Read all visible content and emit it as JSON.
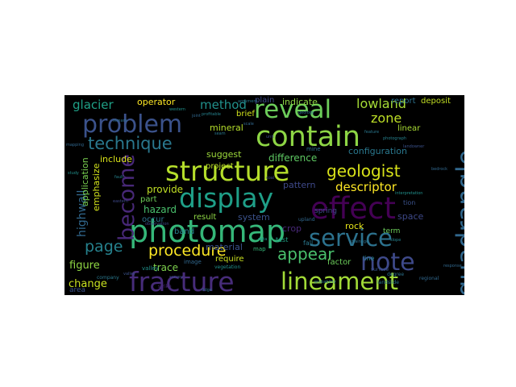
{
  "words": [
    {
      "text": "quadrangle",
      "color": "#31688e"
    },
    {
      "text": "structure",
      "color": "#b5de2b"
    },
    {
      "text": "photomap",
      "color": "#35b779"
    },
    {
      "text": "lineament",
      "color": "#a2da37"
    },
    {
      "text": "fracture",
      "color": "#472c7a"
    },
    {
      "text": "contain",
      "color": "#8ed645"
    },
    {
      "text": "display",
      "color": "#1f9f88"
    },
    {
      "text": "effect",
      "color": "#440154"
    },
    {
      "text": "problem",
      "color": "#3b528b"
    },
    {
      "text": "reveal",
      "color": "#6ccd5a"
    },
    {
      "text": "service",
      "color": "#2c728e"
    },
    {
      "text": "note",
      "color": "#3e4989"
    },
    {
      "text": "become",
      "color": "#482878"
    },
    {
      "text": "technique",
      "color": "#2a788e"
    },
    {
      "text": "geologist",
      "color": "#d8e219"
    },
    {
      "text": "procedure",
      "color": "#fde725"
    },
    {
      "text": "appear",
      "color": "#4ac16d"
    },
    {
      "text": "page",
      "color": "#26828e"
    },
    {
      "text": "glacier",
      "color": "#1fa187"
    },
    {
      "text": "method",
      "color": "#21918c"
    },
    {
      "text": "zone",
      "color": "#bddf26"
    },
    {
      "text": "lowland",
      "color": "#a5db36"
    },
    {
      "text": "descriptor",
      "color": "#fde725"
    },
    {
      "text": "highwall",
      "color": "#31688e"
    },
    {
      "text": "figure",
      "color": "#8fd744"
    },
    {
      "text": "change",
      "color": "#c8e020"
    },
    {
      "text": "configuration",
      "color": "#2a788e"
    },
    {
      "text": "difference",
      "color": "#5ec962"
    },
    {
      "text": "suggest",
      "color": "#9dd93b"
    },
    {
      "text": "application",
      "color": "#7ad151"
    },
    {
      "text": "emphasize",
      "color": "#d2e21b"
    },
    {
      "text": "provide",
      "color": "#c0df25"
    },
    {
      "text": "hazard",
      "color": "#4ac16d"
    },
    {
      "text": "trace",
      "color": "#7fd34e"
    },
    {
      "text": "operator",
      "color": "#fde725"
    },
    {
      "text": "indicate",
      "color": "#8fd744"
    },
    {
      "text": "mineral",
      "color": "#b5de2b"
    },
    {
      "text": "include",
      "color": "#d8e219"
    },
    {
      "text": "pattern",
      "color": "#3e4989"
    },
    {
      "text": "space",
      "color": "#3e4989"
    },
    {
      "text": "rock",
      "color": "#e5e419"
    },
    {
      "text": "report",
      "color": "#2c728e"
    },
    {
      "text": "linear",
      "color": "#a8db34"
    },
    {
      "text": "deposit",
      "color": "#c2df23"
    },
    {
      "text": "crop",
      "color": "#482878"
    },
    {
      "text": "project",
      "color": "#bade28"
    },
    {
      "text": "material",
      "color": "#3b528b"
    },
    {
      "text": "system",
      "color": "#3b528b"
    },
    {
      "text": "result",
      "color": "#8ed645"
    },
    {
      "text": "require",
      "color": "#cae11f"
    },
    {
      "text": "factor",
      "color": "#6ccd5a"
    },
    {
      "text": "occur",
      "color": "#2c728e"
    },
    {
      "text": "band",
      "color": "#26828e"
    },
    {
      "text": "part",
      "color": "#6ece58"
    },
    {
      "text": "brief",
      "color": "#d0e11c"
    },
    {
      "text": "plain",
      "color": "#3e4989"
    },
    {
      "text": "area",
      "color": "#3b528b"
    },
    {
      "text": "term",
      "color": "#6ccd5a"
    },
    {
      "text": "test",
      "color": "#1fa187"
    },
    {
      "text": "fall",
      "color": "#2a788e"
    },
    {
      "text": "map",
      "color": "#35b779"
    },
    {
      "text": "mine",
      "color": "#2c728e"
    },
    {
      "text": "line",
      "color": "#26828e"
    },
    {
      "text": "spring",
      "color": "#3e4989"
    },
    {
      "text": "valley",
      "color": "#21918c"
    },
    {
      "text": "image",
      "color": "#31688e"
    },
    {
      "text": "company",
      "color": "#2a788e"
    },
    {
      "text": "upland",
      "color": "#31688e"
    },
    {
      "text": "tion",
      "color": "#3b528b"
    },
    {
      "text": "degree",
      "color": "#2c728e"
    },
    {
      "text": "vegetation",
      "color": "#21918c"
    },
    {
      "text": "regional",
      "color": "#31688e"
    },
    {
      "text": "landslide",
      "color": "#2a788e"
    },
    {
      "text": "strike",
      "color": "#482878"
    },
    {
      "text": "surface",
      "color": "#3b528b"
    },
    {
      "text": "photograph",
      "color": "#26828e"
    },
    {
      "text": "geology",
      "color": "#2c728e"
    },
    {
      "text": "scale",
      "color": "#31688e"
    },
    {
      "text": "data",
      "color": "#21918c"
    },
    {
      "text": "coal",
      "color": "#3e4989"
    },
    {
      "text": "seam",
      "color": "#2a788e"
    },
    {
      "text": "joint",
      "color": "#31688e"
    },
    {
      "text": "fault",
      "color": "#26828e"
    },
    {
      "text": "valley",
      "color": "#3b528b"
    },
    {
      "text": "drainage",
      "color": "#2c728e"
    },
    {
      "text": "interpretation",
      "color": "#21918c"
    },
    {
      "text": "response",
      "color": "#31688e"
    },
    {
      "text": "observation",
      "color": "#3e4989"
    },
    {
      "text": "argument",
      "color": "#2a788e"
    },
    {
      "text": "profitable",
      "color": "#26828e"
    },
    {
      "text": "landowner",
      "color": "#3b528b"
    },
    {
      "text": "stream",
      "color": "#2c728e"
    },
    {
      "text": "mapping",
      "color": "#31688e"
    },
    {
      "text": "study",
      "color": "#21918c"
    },
    {
      "text": "unit",
      "color": "#3e4989"
    },
    {
      "text": "feature",
      "color": "#2a788e"
    },
    {
      "text": "slope",
      "color": "#26828e"
    },
    {
      "text": "survey",
      "color": "#3b528b"
    },
    {
      "text": "ridge",
      "color": "#2c728e"
    },
    {
      "text": "bedrock",
      "color": "#31688e"
    },
    {
      "text": "western",
      "color": "#21918c"
    },
    {
      "text": "eastern",
      "color": "#3e4989"
    },
    {
      "text": "probability",
      "color": "#2a788e"
    }
  ]
}
